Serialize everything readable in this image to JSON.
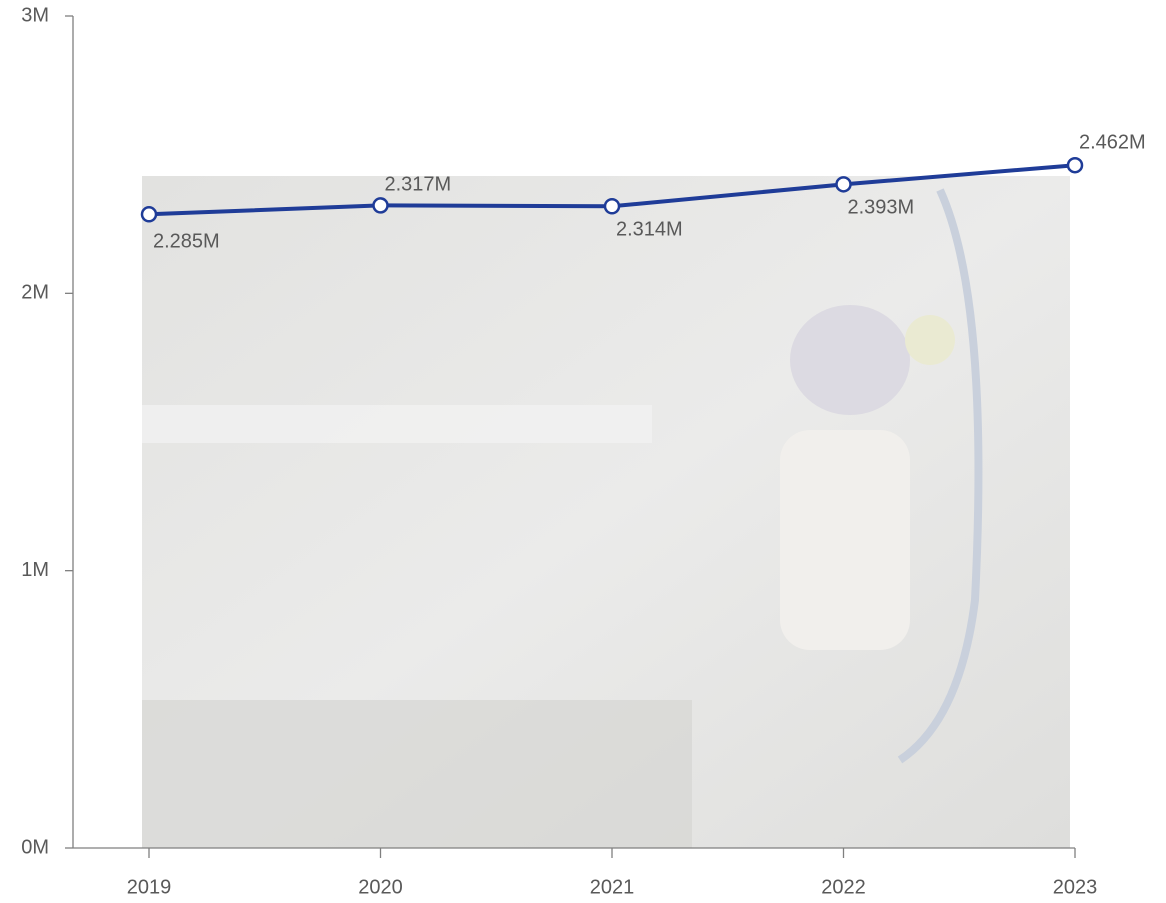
{
  "chart_data": {
    "type": "line",
    "categories": [
      "2019",
      "2020",
      "2021",
      "2022",
      "2023"
    ],
    "series": [
      {
        "color": "#1f3c98",
        "values": [
          2285000,
          2317000,
          2314000,
          2393000,
          2462000
        ],
        "value_labels": [
          "2.285M",
          "2.317M",
          "2.314M",
          "2.393M",
          "2.462M"
        ]
      }
    ],
    "ylim": [
      0,
      3000000
    ],
    "yticks": [
      {
        "value": 0,
        "label": "0M"
      },
      {
        "value": 1000000,
        "label": "1M"
      },
      {
        "value": 2000000,
        "label": "2M"
      },
      {
        "value": 3000000,
        "label": "3M"
      }
    ]
  }
}
